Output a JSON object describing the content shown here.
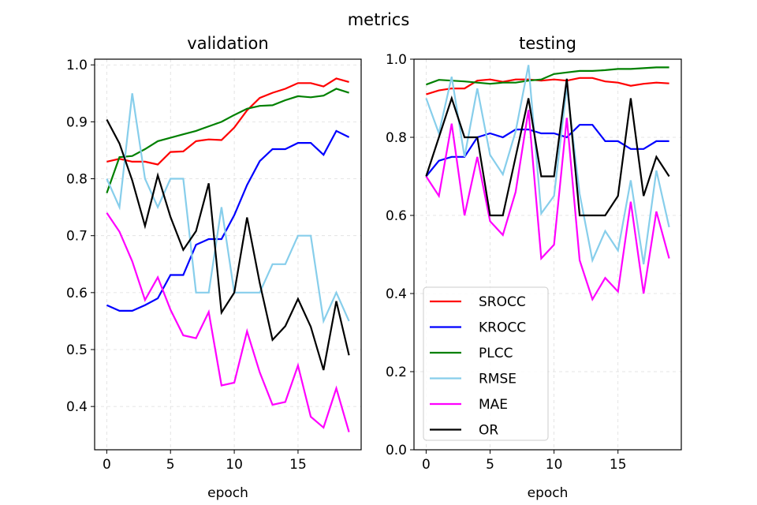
{
  "chart_data": {
    "suptitle": "metrics",
    "colors": {
      "SROCC": "#ff0000",
      "KROCC": "#0000ff",
      "PLCC": "#008000",
      "RMSE": "#87ceeb",
      "MAE": "#ff00ff",
      "OR": "#000000"
    },
    "panels": [
      {
        "type": "line",
        "title": "validation",
        "xlabel": "epoch",
        "xlim": [
          -0.95,
          19.95
        ],
        "ylim": [
          0.324,
          1.01
        ],
        "xticks": [
          0,
          5,
          10,
          15
        ],
        "yticks": [
          0.4,
          0.5,
          0.6,
          0.7,
          0.8,
          0.9,
          1.0
        ],
        "ytick_labels": [
          "0.4",
          "0.5",
          "0.6",
          "0.7",
          "0.8",
          "0.9",
          "1.0"
        ],
        "grid": true,
        "x": [
          0,
          1,
          2,
          3,
          4,
          5,
          6,
          7,
          8,
          9,
          10,
          11,
          12,
          13,
          14,
          15,
          16,
          17,
          18,
          19
        ],
        "series": [
          {
            "name": "SROCC",
            "values": [
              0.83,
              0.835,
              0.83,
              0.83,
              0.825,
              0.847,
              0.848,
              0.866,
              0.869,
              0.868,
              0.89,
              0.92,
              0.942,
              0.951,
              0.958,
              0.968,
              0.968,
              0.962,
              0.976,
              0.97
            ]
          },
          {
            "name": "KROCC",
            "values": [
              0.578,
              0.568,
              0.568,
              0.578,
              0.59,
              0.631,
              0.631,
              0.684,
              0.694,
              0.694,
              0.736,
              0.789,
              0.831,
              0.852,
              0.852,
              0.863,
              0.863,
              0.842,
              0.884,
              0.873
            ]
          },
          {
            "name": "PLCC",
            "values": [
              0.775,
              0.838,
              0.84,
              0.852,
              0.866,
              0.872,
              0.878,
              0.884,
              0.892,
              0.9,
              0.912,
              0.923,
              0.928,
              0.929,
              0.938,
              0.945,
              0.943,
              0.946,
              0.958,
              0.951
            ]
          },
          {
            "name": "RMSE",
            "values": [
              0.8,
              0.75,
              0.95,
              0.8,
              0.75,
              0.8,
              0.8,
              0.6,
              0.6,
              0.75,
              0.6,
              0.6,
              0.6,
              0.65,
              0.65,
              0.7,
              0.7,
              0.55,
              0.6,
              0.55
            ]
          },
          {
            "name": "MAE",
            "values": [
              0.74,
              0.707,
              0.655,
              0.587,
              0.627,
              0.57,
              0.525,
              0.52,
              0.566,
              0.437,
              0.442,
              0.532,
              0.46,
              0.403,
              0.408,
              0.472,
              0.382,
              0.363,
              0.432,
              0.355
            ]
          },
          {
            "name": "OR",
            "values": [
              0.904,
              0.862,
              0.797,
              0.717,
              0.806,
              0.733,
              0.675,
              0.708,
              0.792,
              0.565,
              0.6,
              0.732,
              0.617,
              0.517,
              0.541,
              0.589,
              0.54,
              0.464,
              0.585,
              0.49
            ]
          }
        ]
      },
      {
        "type": "line",
        "title": "testing",
        "xlabel": "epoch",
        "xlim": [
          -0.95,
          19.95
        ],
        "ylim": [
          0.0,
          1.0
        ],
        "xticks": [
          0,
          5,
          10,
          15
        ],
        "yticks": [
          0.0,
          0.2,
          0.4,
          0.6,
          0.8,
          1.0
        ],
        "ytick_labels": [
          "0.0",
          "0.2",
          "0.4",
          "0.6",
          "0.8",
          "1.0"
        ],
        "grid": true,
        "legend": "lower-left",
        "x": [
          0,
          1,
          2,
          3,
          4,
          5,
          6,
          7,
          8,
          9,
          10,
          11,
          12,
          13,
          14,
          15,
          16,
          17,
          18,
          19
        ],
        "series": [
          {
            "name": "SROCC",
            "values": [
              0.91,
              0.92,
              0.925,
              0.925,
              0.945,
              0.948,
              0.942,
              0.948,
              0.948,
              0.945,
              0.948,
              0.945,
              0.952,
              0.952,
              0.943,
              0.94,
              0.932,
              0.937,
              0.94,
              0.938
            ]
          },
          {
            "name": "KROCC",
            "values": [
              0.7,
              0.74,
              0.75,
              0.75,
              0.8,
              0.81,
              0.8,
              0.82,
              0.82,
              0.81,
              0.81,
              0.8,
              0.832,
              0.832,
              0.79,
              0.79,
              0.77,
              0.77,
              0.79,
              0.79
            ]
          },
          {
            "name": "PLCC",
            "values": [
              0.935,
              0.947,
              0.945,
              0.943,
              0.94,
              0.937,
              0.94,
              0.94,
              0.945,
              0.948,
              0.962,
              0.966,
              0.97,
              0.97,
              0.972,
              0.975,
              0.975,
              0.977,
              0.979,
              0.979
            ]
          },
          {
            "name": "RMSE",
            "values": [
              0.9,
              0.81,
              0.955,
              0.75,
              0.925,
              0.755,
              0.705,
              0.815,
              0.985,
              0.605,
              0.65,
              0.93,
              0.655,
              0.485,
              0.56,
              0.51,
              0.69,
              0.475,
              0.715,
              0.57
            ]
          },
          {
            "name": "MAE",
            "values": [
              0.7,
              0.65,
              0.835,
              0.6,
              0.75,
              0.585,
              0.55,
              0.66,
              0.87,
              0.49,
              0.525,
              0.85,
              0.485,
              0.385,
              0.44,
              0.405,
              0.635,
              0.4,
              0.61,
              0.49
            ]
          },
          {
            "name": "OR",
            "values": [
              0.7,
              0.8,
              0.9,
              0.8,
              0.8,
              0.6,
              0.6,
              0.75,
              0.9,
              0.7,
              0.7,
              0.95,
              0.6,
              0.6,
              0.6,
              0.65,
              0.9,
              0.65,
              0.75,
              0.7
            ]
          }
        ]
      }
    ]
  }
}
